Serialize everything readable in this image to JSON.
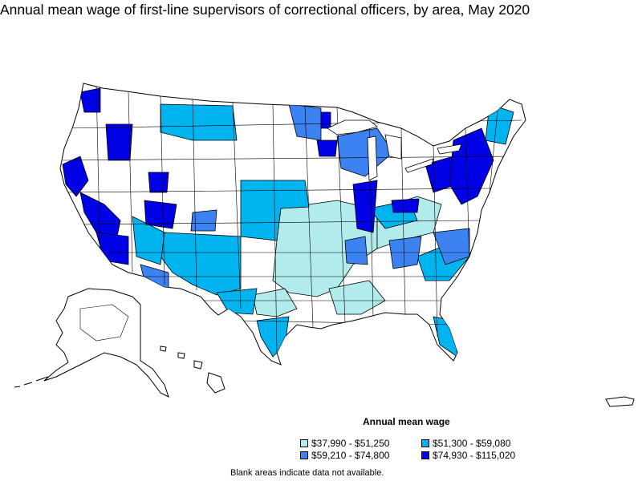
{
  "title": "Annual mean wage of first-line supervisors of correctional officers, by area, May 2020",
  "legend": {
    "title": "Annual mean wage",
    "items": [
      {
        "label": "$37,990 - $51,250",
        "color": "#b2ebeb"
      },
      {
        "label": "$51,300 - $59,080",
        "color": "#00b4f0"
      },
      {
        "label": "$59,210 - $74,800",
        "color": "#3c82f0"
      },
      {
        "label": "$74,930 - $115,020",
        "color": "#0000e6"
      }
    ]
  },
  "note": "Blank areas indicate data not available.",
  "colors": {
    "blank": "#ffffff",
    "outline": "#000000"
  }
}
